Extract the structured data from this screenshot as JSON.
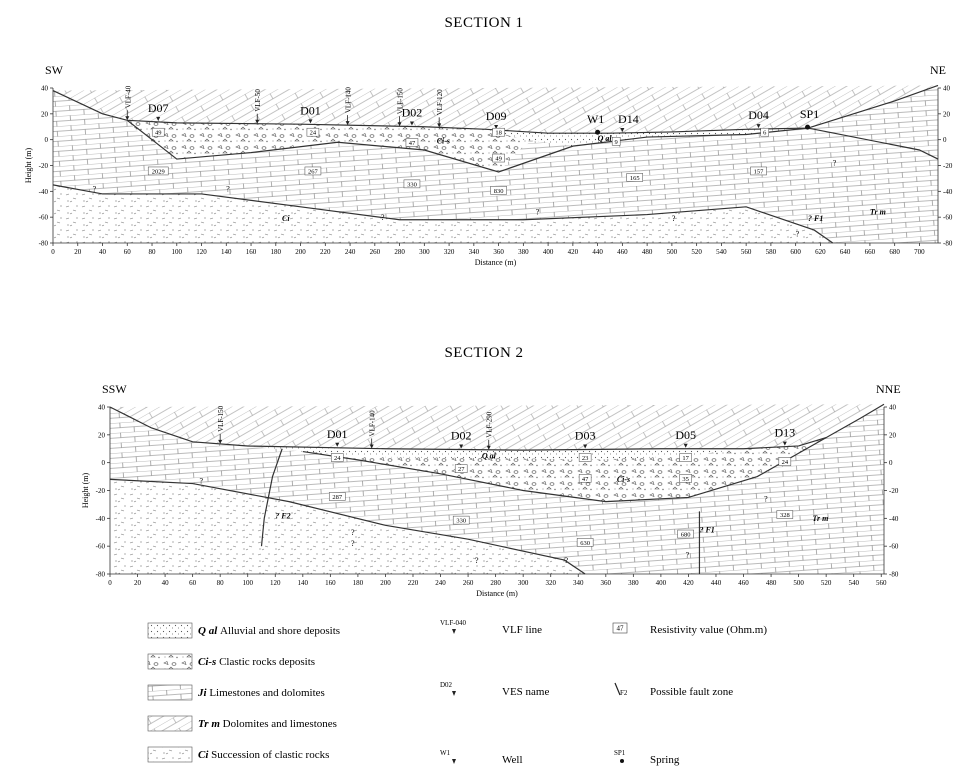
{
  "section1": {
    "title": "SECTION 1",
    "left_dir": "SW",
    "right_dir": "NE",
    "ylabel": "Height (m)",
    "xlabel": "Distance (m)",
    "xticks": [
      "0",
      "20",
      "40",
      "60",
      "80",
      "100",
      "120",
      "140",
      "160",
      "180",
      "200",
      "220",
      "240",
      "260",
      "280",
      "300",
      "320",
      "340",
      "360",
      "380",
      "400",
      "420",
      "440",
      "460",
      "480",
      "500",
      "520",
      "540",
      "560",
      "580",
      "600",
      "620",
      "640",
      "660",
      "680",
      "700"
    ],
    "yticks_left": [
      "40",
      "20",
      "0",
      "-20",
      "-40",
      "-60",
      "-80"
    ],
    "yticks_right": [
      "40",
      "20",
      "0",
      "-20",
      "-40",
      "-60",
      "-80"
    ],
    "vlf": [
      {
        "label": "VLF-40",
        "x": 60
      },
      {
        "label": "VLF-50",
        "x": 165
      },
      {
        "label": "VLF-140",
        "x": 238
      },
      {
        "label": "VLF-150",
        "x": 280
      },
      {
        "label": "VLF-120",
        "x": 312
      }
    ],
    "ves": [
      {
        "label": "D07",
        "x": 85
      },
      {
        "label": "D01",
        "x": 208
      },
      {
        "label": "D02",
        "x": 290
      },
      {
        "label": "D09",
        "x": 358
      },
      {
        "label": "D04",
        "x": 570
      }
    ],
    "well": {
      "label": "W1",
      "x": 440
    },
    "ves_d14": {
      "label": "D14",
      "x": 460
    },
    "spring": {
      "label": "SP1",
      "x": 608
    },
    "resistivity": [
      {
        "v": "49",
        "x": 85,
        "y": 5
      },
      {
        "v": "24",
        "x": 210,
        "y": 5
      },
      {
        "v": "47",
        "x": 290,
        "y": -3
      },
      {
        "v": "18",
        "x": 360,
        "y": 5
      },
      {
        "v": "49",
        "x": 360,
        "y": -15
      },
      {
        "v": "9",
        "x": 455,
        "y": -2
      },
      {
        "v": "6",
        "x": 575,
        "y": 5
      },
      {
        "v": "2029",
        "x": 85,
        "y": -25
      },
      {
        "v": "267",
        "x": 210,
        "y": -25
      },
      {
        "v": "330",
        "x": 290,
        "y": -35
      },
      {
        "v": "830",
        "x": 360,
        "y": -40
      },
      {
        "v": "165",
        "x": 470,
        "y": -30
      },
      {
        "v": "157",
        "x": 570,
        "y": -25
      }
    ],
    "unit_labels": [
      {
        "t": "Q al",
        "x": 440,
        "y": -1
      },
      {
        "t": "Ci-s",
        "x": 310,
        "y": -3
      },
      {
        "t": "Ci",
        "x": 185,
        "y": -63
      },
      {
        "t": "Tr m",
        "x": 660,
        "y": -58
      },
      {
        "t": "? F1",
        "x": 610,
        "y": -63
      }
    ],
    "question_marks": [
      {
        "x": 32,
        "y": -40
      },
      {
        "x": 140,
        "y": -40
      },
      {
        "x": 265,
        "y": -62
      },
      {
        "x": 390,
        "y": -58
      },
      {
        "x": 500,
        "y": -63
      },
      {
        "x": 630,
        "y": -20
      },
      {
        "x": 600,
        "y": -75
      }
    ]
  },
  "section2": {
    "title": "SECTION 2",
    "left_dir": "SSW",
    "right_dir": "NNE",
    "ylabel": "Height (m)",
    "xlabel": "Distance (m)",
    "xticks": [
      "0",
      "20",
      "40",
      "60",
      "80",
      "100",
      "120",
      "140",
      "160",
      "180",
      "200",
      "220",
      "240",
      "260",
      "280",
      "300",
      "320",
      "340",
      "360",
      "380",
      "400",
      "420",
      "440",
      "460",
      "480",
      "500",
      "520",
      "540",
      "560"
    ],
    "yticks_left": [
      "40",
      "20",
      "0",
      "-20",
      "-40",
      "-60",
      "-80"
    ],
    "yticks_right": [
      "40",
      "20",
      "0",
      "-20",
      "-40",
      "-60",
      "-80"
    ],
    "vlf": [
      {
        "label": "VLF-150",
        "x": 80
      },
      {
        "label": "VLF-140",
        "x": 190
      },
      {
        "label": "VLF-290",
        "x": 275
      }
    ],
    "ves": [
      {
        "label": "D01",
        "x": 165
      },
      {
        "label": "D02",
        "x": 255
      },
      {
        "label": "D03",
        "x": 345
      },
      {
        "label": "D05",
        "x": 418
      },
      {
        "label": "D13",
        "x": 490
      }
    ],
    "resistivity": [
      {
        "v": "24",
        "x": 165,
        "y": 3
      },
      {
        "v": "27",
        "x": 255,
        "y": -5
      },
      {
        "v": "23",
        "x": 345,
        "y": 3
      },
      {
        "v": "47",
        "x": 345,
        "y": -12
      },
      {
        "v": "35",
        "x": 418,
        "y": -12
      },
      {
        "v": "17",
        "x": 418,
        "y": 3
      },
      {
        "v": "24",
        "x": 490,
        "y": 0
      },
      {
        "v": "287",
        "x": 165,
        "y": -25
      },
      {
        "v": "330",
        "x": 255,
        "y": -42
      },
      {
        "v": "630",
        "x": 345,
        "y": -58
      },
      {
        "v": "680",
        "x": 418,
        "y": -52
      },
      {
        "v": "328",
        "x": 490,
        "y": -38
      }
    ],
    "unit_labels": [
      {
        "t": "Q al",
        "x": 270,
        "y": 3
      },
      {
        "t": "Ci-s",
        "x": 368,
        "y": -14
      },
      {
        "t": "Tr m",
        "x": 510,
        "y": -42
      },
      {
        "t": "? F2",
        "x": 120,
        "y": -40
      },
      {
        "t": "? F1",
        "x": 428,
        "y": -50
      }
    ],
    "question_marks": [
      {
        "x": 65,
        "y": -15
      },
      {
        "x": 175,
        "y": -52
      },
      {
        "x": 265,
        "y": -72
      },
      {
        "x": 330,
        "y": -72
      },
      {
        "x": 475,
        "y": -28
      },
      {
        "x": 418,
        "y": -68
      },
      {
        "x": 175,
        "y": -60
      }
    ]
  },
  "legend": {
    "units": [
      {
        "code": "Q al",
        "text": "Alluvial and shore deposits",
        "pattern": "dots"
      },
      {
        "code": "Ci-s",
        "text": "Clastic rocks deposits",
        "pattern": "clasts"
      },
      {
        "code": "Ji",
        "text": "Limestones and dolomites",
        "pattern": "bricks"
      },
      {
        "code": "Tr m",
        "text": "Dolomites and limestones",
        "pattern": "slant"
      },
      {
        "code": "Ci",
        "text": "Succession of clastic rocks",
        "pattern": "clastic"
      }
    ],
    "symbols": [
      {
        "sym": "VLF-040",
        "text": "VLF line"
      },
      {
        "sym": "D02",
        "text": "VES name"
      },
      {
        "sym": "W1",
        "text": "Well"
      }
    ],
    "others": [
      {
        "sym": "47",
        "text": "Resistivity value (Ohm.m)"
      },
      {
        "sym": "F2",
        "text": "Possible fault zone"
      },
      {
        "sym": "SP1",
        "text": "Spring"
      }
    ]
  }
}
